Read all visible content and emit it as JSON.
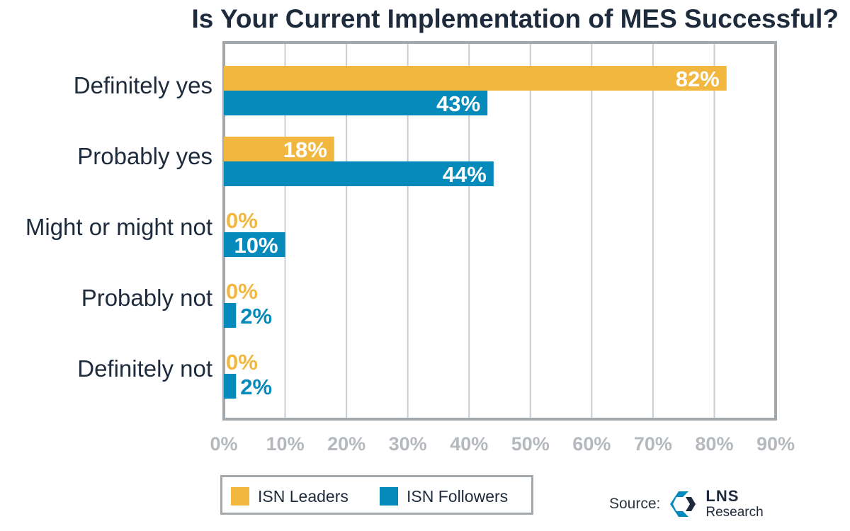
{
  "colors": {
    "leaders": "#f2b73f",
    "followers": "#0689bb",
    "axis": "#a3a8ad",
    "grid": "#c9cdd1",
    "text": "#1e2b3c"
  },
  "chart_data": {
    "type": "bar",
    "orientation": "horizontal",
    "title": "Is Your Current Implementation of MES Successful?",
    "categories": [
      "Definitely yes",
      "Probably yes",
      "Might or might not",
      "Probably not",
      "Definitely not"
    ],
    "series": [
      {
        "name": "ISN Leaders",
        "values": [
          82,
          18,
          0,
          0,
          0
        ],
        "labels": [
          "82%",
          "18%",
          "0%",
          "0%",
          "0%"
        ]
      },
      {
        "name": "ISN Followers",
        "values": [
          43,
          44,
          10,
          2,
          2
        ],
        "labels": [
          "43%",
          "44%",
          "10%",
          "2%",
          "2%"
        ]
      }
    ],
    "xlim": [
      0,
      90
    ],
    "xticks": [
      0,
      10,
      20,
      30,
      40,
      50,
      60,
      70,
      80,
      90
    ],
    "xtick_labels": [
      "0%",
      "10%",
      "20%",
      "30%",
      "40%",
      "50%",
      "60%",
      "70%",
      "80%",
      "90%"
    ],
    "grid": true,
    "legend_position": "bottom-left"
  },
  "source": {
    "label": "Source:",
    "logo_name": "LNS",
    "logo_sub": "Research"
  }
}
